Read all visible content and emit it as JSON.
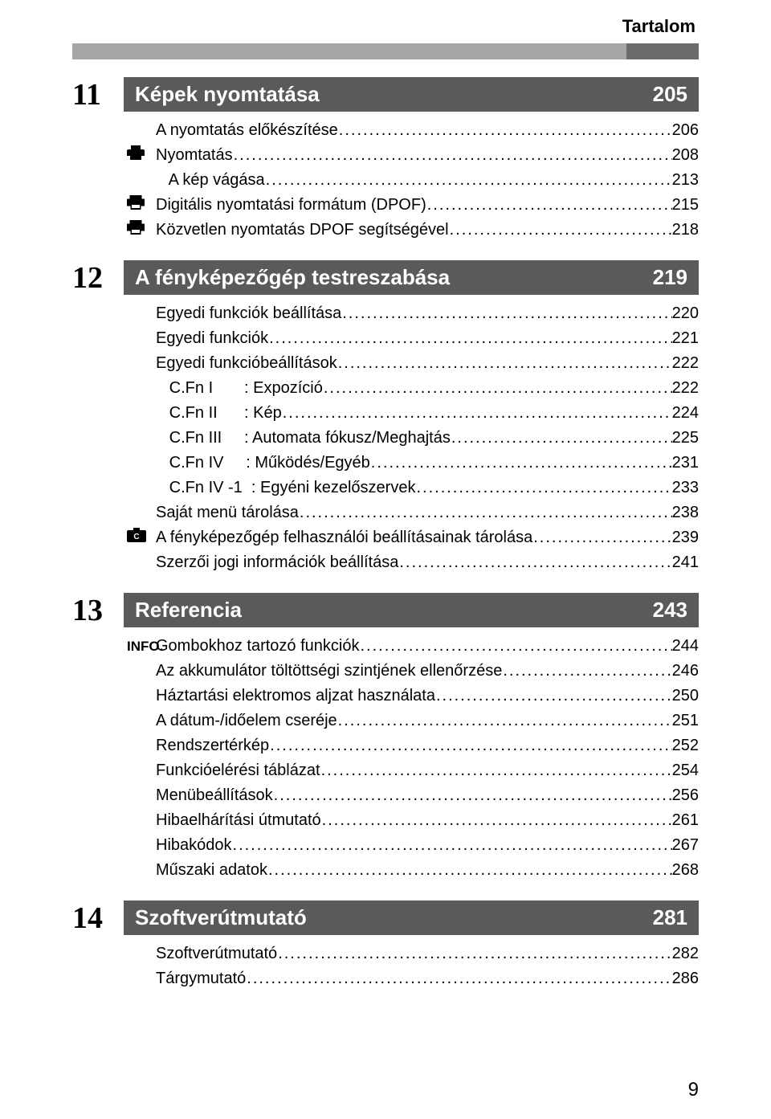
{
  "header_title": "Tartalom",
  "page_number": "9",
  "colors": {
    "header_bar_gray": "#a6a6a6",
    "header_bar_tab": "#6b6b6b",
    "section_bar": "#5a5a5a",
    "section_text": "#ffffff",
    "body_text": "#000000"
  },
  "sections": [
    {
      "num": "11",
      "title": "Képek nyomtatása",
      "page": "205",
      "entries": [
        {
          "icon": "",
          "label": "A nyomtatás előkészítése",
          "pg": "206"
        },
        {
          "icon": "print",
          "label": "Nyomtatás",
          "pg": "208"
        },
        {
          "icon": "",
          "label": "   A kép vágása",
          "pg": "213"
        },
        {
          "icon": "dpof",
          "label": "Digitális nyomtatási formátum (DPOF)",
          "pg": "215"
        },
        {
          "icon": "dpof",
          "label": "Közvetlen nyomtatás DPOF segítségével",
          "pg": "218"
        }
      ]
    },
    {
      "num": "12",
      "title": "A fényképezőgép testreszabása",
      "page": "219",
      "entries": [
        {
          "icon": "",
          "label": "Egyedi funkciók beállítása",
          "pg": "220"
        },
        {
          "icon": "",
          "label": "Egyedi funkciók",
          "pg": "221"
        },
        {
          "icon": "",
          "label": "Egyedi funkcióbeállítások",
          "pg": "222"
        },
        {
          "icon": "",
          "label": "   C.Fn I       : Expozíció",
          "pg": "222"
        },
        {
          "icon": "",
          "label": "   C.Fn II      : Kép",
          "pg": "224"
        },
        {
          "icon": "",
          "label": "   C.Fn III     : Automata fókusz/Meghajtás",
          "pg": "225"
        },
        {
          "icon": "",
          "label": "   C.Fn IV     : Működés/Egyéb",
          "pg": "231"
        },
        {
          "icon": "",
          "label": "   C.Fn IV -1  : Egyéni kezelőszervek",
          "pg": "233"
        },
        {
          "icon": "",
          "label": "Saját menü tárolása",
          "pg": "238"
        },
        {
          "icon": "camera",
          "label": "A fényképezőgép felhasználói beállításainak tárolása",
          "pg": "239"
        },
        {
          "icon": "",
          "label": "Szerzői jogi információk beállítása",
          "pg": "241"
        }
      ]
    },
    {
      "num": "13",
      "title": "Referencia",
      "page": "243",
      "entries": [
        {
          "icon": "info",
          "label": "Gombokhoz tartozó funkciók",
          "pg": "244"
        },
        {
          "icon": "",
          "label": "Az akkumulátor töltöttségi szintjének ellenőrzése",
          "pg": "246"
        },
        {
          "icon": "",
          "label": "Háztartási elektromos aljzat használata",
          "pg": "250"
        },
        {
          "icon": "",
          "label": "A dátum-/időelem cseréje",
          "pg": "251"
        },
        {
          "icon": "",
          "label": "Rendszertérkép",
          "pg": "252"
        },
        {
          "icon": "",
          "label": "Funkcióelérési táblázat",
          "pg": "254"
        },
        {
          "icon": "",
          "label": "Menübeállítások",
          "pg": "256"
        },
        {
          "icon": "",
          "label": "Hibaelhárítási útmutató",
          "pg": "261"
        },
        {
          "icon": "",
          "label": "Hibakódok",
          "pg": "267"
        },
        {
          "icon": "",
          "label": "Műszaki adatok",
          "pg": "268"
        }
      ]
    },
    {
      "num": "14",
      "title": "Szoftverútmutató",
      "page": "281",
      "entries": [
        {
          "icon": "",
          "label": "Szoftverútmutató",
          "pg": "282"
        },
        {
          "icon": "",
          "label": "Tárgymutató",
          "pg": "286"
        }
      ]
    }
  ]
}
